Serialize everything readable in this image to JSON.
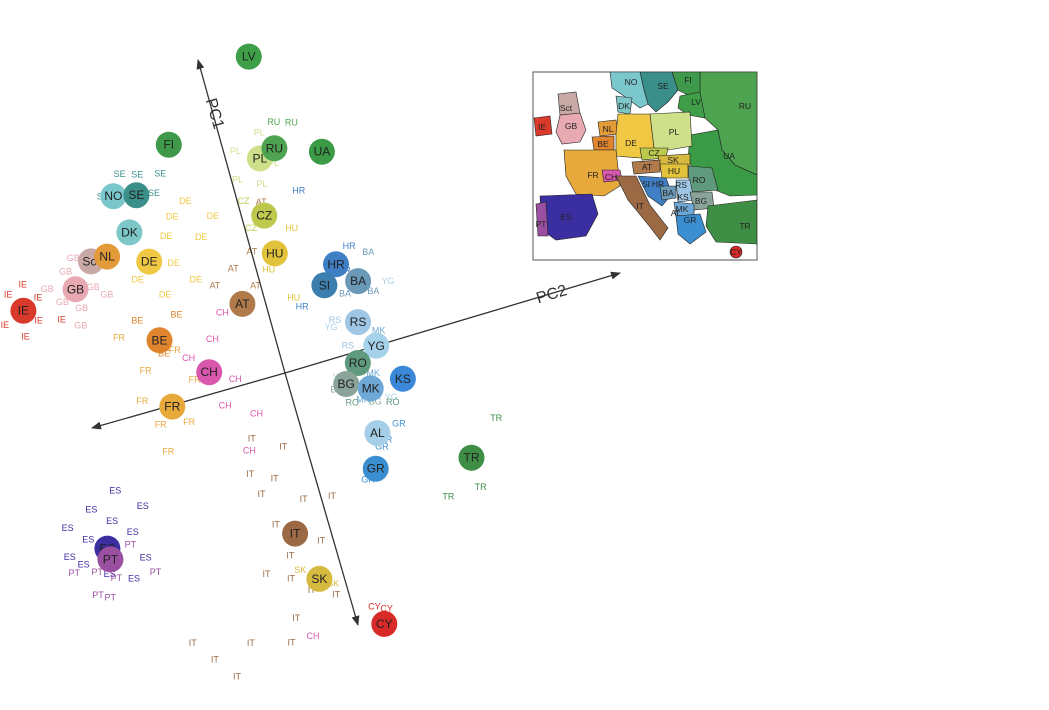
{
  "chart_data": {
    "type": "scatter",
    "title": "",
    "axes": [
      {
        "name": "PC1",
        "direction": "up"
      },
      {
        "name": "PC2",
        "direction": "right"
      }
    ],
    "colors": {
      "IE": "#d93a2b",
      "GB": "#e8a9b3",
      "Sct": "#c9a9a6",
      "NL": "#e39a38",
      "DK": "#7ec7c9",
      "NO": "#7bc8cc",
      "SE": "#3a8f8a",
      "FI": "#3e9a4a",
      "DE": "#f0c843",
      "BE": "#e0842e",
      "FR": "#e8a93b",
      "CH": "#d957ad",
      "AT": "#b07a4a",
      "CZ": "#bcc94c",
      "HU": "#e2c23a",
      "PL": "#cfe08a",
      "RU": "#4ea350",
      "LV": "#3f9e48",
      "UA": "#3a9a45",
      "HR": "#3f7fc6",
      "SI": "#3c7fae",
      "BA": "#6a9ab8",
      "RS": "#9fc6e4",
      "YG": "#a6d1ea",
      "RO": "#5f9a7e",
      "BG": "#8aa49a",
      "MK": "#6ea8d6",
      "KS": "#3b88d8",
      "AL": "#a5cfe8",
      "GR": "#3b8fd0",
      "TR": "#3e8e46",
      "IT": "#9b6a44",
      "SK": "#d6ba40",
      "CY": "#d82a26",
      "ES": "#3b2ea0",
      "PT": "#9a4fa0"
    },
    "centroids": [
      {
        "label": "IE",
        "pc1": 2.4,
        "pc2": -4.2
      },
      {
        "label": "GB",
        "pc1": 2.5,
        "pc2": -3.2
      },
      {
        "label": "Sct",
        "pc1": 2.9,
        "pc2": -2.8
      },
      {
        "label": "NL",
        "pc1": 2.9,
        "pc2": -2.5
      },
      {
        "label": "DK",
        "pc1": 3.2,
        "pc2": -2.0
      },
      {
        "label": "NO",
        "pc1": 3.9,
        "pc2": -2.1
      },
      {
        "label": "SE",
        "pc1": 3.8,
        "pc2": -1.7
      },
      {
        "label": "FI",
        "pc1": 4.5,
        "pc2": -0.9
      },
      {
        "label": "DE",
        "pc1": 2.6,
        "pc2": -1.8
      },
      {
        "label": "BE",
        "pc1": 1.2,
        "pc2": -2.0
      },
      {
        "label": "FR",
        "pc1": 0.0,
        "pc2": -2.1
      },
      {
        "label": "CH",
        "pc1": 0.4,
        "pc2": -1.3
      },
      {
        "label": "AT",
        "pc1": 1.4,
        "pc2": -0.4
      },
      {
        "label": "CZ",
        "pc1": 2.8,
        "pc2": 0.4
      },
      {
        "label": "HU",
        "pc1": 2.1,
        "pc2": 0.4
      },
      {
        "label": "PL",
        "pc1": 3.8,
        "pc2": 0.6
      },
      {
        "label": "RU",
        "pc1": 3.9,
        "pc2": 0.9
      },
      {
        "label": "LV",
        "pc1": 5.6,
        "pc2": 0.9
      },
      {
        "label": "UA",
        "pc1": 3.6,
        "pc2": 1.7
      },
      {
        "label": "HR",
        "pc1": 1.6,
        "pc2": 1.4
      },
      {
        "label": "SI",
        "pc1": 1.3,
        "pc2": 1.1
      },
      {
        "label": "BA",
        "pc1": 1.2,
        "pc2": 1.7
      },
      {
        "label": "RS",
        "pc1": 0.5,
        "pc2": 1.5
      },
      {
        "label": "YG",
        "pc1": 0.0,
        "pc2": 1.7
      },
      {
        "label": "RO",
        "pc1": -0.2,
        "pc2": 1.3
      },
      {
        "label": "BG",
        "pc1": -0.5,
        "pc2": 1.0
      },
      {
        "label": "MK",
        "pc1": -0.7,
        "pc2": 1.4
      },
      {
        "label": "KS",
        "pc1": -0.7,
        "pc2": 2.0
      },
      {
        "label": "AL",
        "pc1": -1.5,
        "pc2": 1.3
      },
      {
        "label": "GR",
        "pc1": -2.1,
        "pc2": 1.1
      },
      {
        "label": "TR",
        "pc1": -2.4,
        "pc2": 2.8
      },
      {
        "label": "IT",
        "pc1": -2.8,
        "pc2": -0.6
      },
      {
        "label": "SK",
        "pc1": -3.7,
        "pc2": -0.4
      },
      {
        "label": "CY",
        "pc1": -4.8,
        "pc2": 0.5
      },
      {
        "label": "ES",
        "pc1": -2.1,
        "pc2": -3.9
      },
      {
        "label": "PT",
        "pc1": -2.3,
        "pc2": -3.9
      }
    ],
    "individuals": [
      {
        "label": "IE",
        "pc1": 2.4,
        "pc2": -4.9
      },
      {
        "label": "IE",
        "pc1": 2.2,
        "pc2": -4.6
      },
      {
        "label": "IE",
        "pc1": 2.7,
        "pc2": -4.4
      },
      {
        "label": "IE",
        "pc1": 1.9,
        "pc2": -4.3
      },
      {
        "label": "IE",
        "pc1": 2.5,
        "pc2": -3.9
      },
      {
        "label": "IE",
        "pc1": 2.1,
        "pc2": -4.0
      },
      {
        "label": "IE",
        "pc1": 2.8,
        "pc2": -4.1
      },
      {
        "label": "IE",
        "pc1": 2.0,
        "pc2": -3.6
      },
      {
        "label": "GB",
        "pc1": 2.3,
        "pc2": -3.5
      },
      {
        "label": "GB",
        "pc1": 2.6,
        "pc2": -3.7
      },
      {
        "label": "GB",
        "pc1": 2.1,
        "pc2": -3.2
      },
      {
        "label": "GB",
        "pc1": 2.8,
        "pc2": -3.3
      },
      {
        "label": "GB",
        "pc1": 1.8,
        "pc2": -3.3
      },
      {
        "label": "GB",
        "pc1": 2.4,
        "pc2": -2.9
      },
      {
        "label": "GB",
        "pc1": 3.0,
        "pc2": -3.1
      },
      {
        "label": "GB",
        "pc1": 2.2,
        "pc2": -2.7
      },
      {
        "label": "SE",
        "pc1": 4.1,
        "pc2": -1.6
      },
      {
        "label": "SE",
        "pc1": 4.2,
        "pc2": -1.9
      },
      {
        "label": "SE",
        "pc1": 3.9,
        "pc2": -2.3
      },
      {
        "label": "SE",
        "pc1": 4.0,
        "pc2": -1.2
      },
      {
        "label": "SE",
        "pc1": 3.7,
        "pc2": -1.4
      },
      {
        "label": "DE",
        "pc1": 3.2,
        "pc2": -1.2
      },
      {
        "label": "DE",
        "pc1": 2.9,
        "pc2": -1.4
      },
      {
        "label": "DE",
        "pc1": 2.4,
        "pc2": -1.4
      },
      {
        "label": "DE",
        "pc1": 2.3,
        "pc2": -2.1
      },
      {
        "label": "DE",
        "pc1": 3.4,
        "pc2": -0.9
      },
      {
        "label": "DE",
        "pc1": 2.0,
        "pc2": -1.1
      },
      {
        "label": "DE",
        "pc1": 2.7,
        "pc2": -0.8
      },
      {
        "label": "DE",
        "pc1": 1.9,
        "pc2": -1.7
      },
      {
        "label": "DE",
        "pc1": 3.0,
        "pc2": -0.5
      },
      {
        "label": "PL",
        "pc1": 3.5,
        "pc2": 0.1
      },
      {
        "label": "PL",
        "pc1": 4.0,
        "pc2": 0.2
      },
      {
        "label": "PL",
        "pc1": 3.6,
        "pc2": 0.8
      },
      {
        "label": "PL",
        "pc1": 4.2,
        "pc2": 0.7
      },
      {
        "label": "PL",
        "pc1": 3.3,
        "pc2": 0.5
      },
      {
        "label": "RU",
        "pc1": 4.3,
        "pc2": 1.0
      },
      {
        "label": "RU",
        "pc1": 4.2,
        "pc2": 1.3
      },
      {
        "label": "CZ",
        "pc1": 3.1,
        "pc2": 0.1
      },
      {
        "label": "CZ",
        "pc1": 2.6,
        "pc2": 0.1
      },
      {
        "label": "AT",
        "pc1": 2.0,
        "pc2": -0.4
      },
      {
        "label": "AT",
        "pc1": 1.8,
        "pc2": -0.8
      },
      {
        "label": "AT",
        "pc1": 1.6,
        "pc2": -0.1
      },
      {
        "label": "AT",
        "pc1": 3.0,
        "pc2": 0.4
      },
      {
        "label": "AT",
        "pc1": 2.2,
        "pc2": 0.0
      },
      {
        "label": "HU",
        "pc1": 1.8,
        "pc2": 0.2
      },
      {
        "label": "HU",
        "pc1": 2.4,
        "pc2": 0.8
      },
      {
        "label": "HU",
        "pc1": 1.2,
        "pc2": 0.5
      },
      {
        "label": "HR",
        "pc1": 3.0,
        "pc2": 1.1
      },
      {
        "label": "HR",
        "pc1": 1.0,
        "pc2": 0.6
      },
      {
        "label": "HR",
        "pc1": 1.8,
        "pc2": 1.7
      },
      {
        "label": "HR",
        "pc1": 1.4,
        "pc2": 1.5
      },
      {
        "label": "HR",
        "pc1": -1.7,
        "pc2": 1.4
      },
      {
        "label": "BA",
        "pc1": 1.6,
        "pc2": 2.0
      },
      {
        "label": "BA",
        "pc1": 1.0,
        "pc2": 1.4
      },
      {
        "label": "BA",
        "pc1": 0.9,
        "pc2": 1.9
      },
      {
        "label": "YG",
        "pc1": 1.0,
        "pc2": 2.2
      },
      {
        "label": "YG",
        "pc1": -0.4,
        "pc2": 0.9
      },
      {
        "label": "YG",
        "pc1": 0.5,
        "pc2": 1.0
      },
      {
        "label": "YG",
        "pc1": -1.0,
        "pc2": 1.7
      },
      {
        "label": "RS",
        "pc1": 0.6,
        "pc2": 1.1
      },
      {
        "label": "RS",
        "pc1": 0.1,
        "pc2": 1.2
      },
      {
        "label": "MK",
        "pc1": -0.5,
        "pc2": 1.5
      },
      {
        "label": "MK",
        "pc1": -0.9,
        "pc2": 1.2
      },
      {
        "label": "MK",
        "pc1": 0.2,
        "pc2": 1.8
      },
      {
        "label": "RO",
        "pc1": -0.9,
        "pc2": 1.0
      },
      {
        "label": "RO",
        "pc1": -1.1,
        "pc2": 1.7
      },
      {
        "label": "BG",
        "pc1": -0.6,
        "pc2": 0.8
      },
      {
        "label": "BG",
        "pc1": -1.0,
        "pc2": 1.4
      },
      {
        "label": "GR",
        "pc1": -1.8,
        "pc2": 1.3
      },
      {
        "label": "GR",
        "pc1": -1.5,
        "pc2": 1.7
      },
      {
        "label": "GR",
        "pc1": -2.3,
        "pc2": 0.9
      },
      {
        "label": "TR",
        "pc1": -1.9,
        "pc2": 3.4
      },
      {
        "label": "TR",
        "pc1": -3.0,
        "pc2": 2.2
      },
      {
        "label": "TR",
        "pc1": -3.0,
        "pc2": 2.8
      },
      {
        "label": "FR",
        "pc1": 0.7,
        "pc2": -2.4
      },
      {
        "label": "FR",
        "pc1": 0.2,
        "pc2": -2.6
      },
      {
        "label": "FR",
        "pc1": -0.3,
        "pc2": -2.4
      },
      {
        "label": "FR",
        "pc1": 0.9,
        "pc2": -1.8
      },
      {
        "label": "FR",
        "pc1": -0.4,
        "pc2": -1.9
      },
      {
        "label": "FR",
        "pc1": 1.4,
        "pc2": -2.7
      },
      {
        "label": "FR",
        "pc1": -0.8,
        "pc2": -2.4
      },
      {
        "label": "FR",
        "pc1": 0.3,
        "pc2": -1.6
      },
      {
        "label": "CH",
        "pc1": 0.9,
        "pc2": -1.1
      },
      {
        "label": "CH",
        "pc1": 0.1,
        "pc2": -0.9
      },
      {
        "label": "CH",
        "pc1": -0.3,
        "pc2": -1.2
      },
      {
        "label": "CH",
        "pc1": 0.7,
        "pc2": -1.6
      },
      {
        "label": "CH",
        "pc1": -0.6,
        "pc2": -0.7
      },
      {
        "label": "CH",
        "pc1": 1.3,
        "pc2": -0.8
      },
      {
        "label": "CH",
        "pc1": -1.2,
        "pc2": -1.0
      },
      {
        "label": "CH",
        "pc1": -4.7,
        "pc2": -0.8
      },
      {
        "label": "BE",
        "pc1": 1.6,
        "pc2": -2.3
      },
      {
        "label": "BE",
        "pc1": 0.9,
        "pc2": -2.0
      },
      {
        "label": "BE",
        "pc1": 1.5,
        "pc2": -1.6
      },
      {
        "label": "IT",
        "pc1": -1.3,
        "pc2": -0.4
      },
      {
        "label": "IT",
        "pc1": -1.8,
        "pc2": -0.7
      },
      {
        "label": "IT",
        "pc1": -2.3,
        "pc2": -0.3
      },
      {
        "label": "IT",
        "pc1": -2.0,
        "pc2": -1.0
      },
      {
        "label": "IT",
        "pc1": -2.6,
        "pc2": -0.9
      },
      {
        "label": "IT",
        "pc1": -3.1,
        "pc2": -0.2
      },
      {
        "label": "IT",
        "pc1": -3.2,
        "pc2": -0.8
      },
      {
        "label": "IT",
        "pc1": -3.6,
        "pc2": -0.9
      },
      {
        "label": "IT",
        "pc1": -2.4,
        "pc2": 0.2
      },
      {
        "label": "IT",
        "pc1": -1.6,
        "pc2": -1.1
      },
      {
        "label": "IT",
        "pc1": -3.9,
        "pc2": -0.6
      },
      {
        "label": "IT",
        "pc1": -4.1,
        "pc2": -0.2
      },
      {
        "label": "IT",
        "pc1": -1.0,
        "pc2": -0.9
      },
      {
        "label": "IT",
        "pc1": -4.3,
        "pc2": -1.0
      },
      {
        "label": "IT",
        "pc1": -3.4,
        "pc2": -1.3
      },
      {
        "label": "IT",
        "pc1": -4.6,
        "pc2": -2.6
      },
      {
        "label": "IT",
        "pc1": -5.0,
        "pc2": -2.3
      },
      {
        "label": "IT",
        "pc1": -4.5,
        "pc2": -1.9
      },
      {
        "label": "IT",
        "pc1": -4.2,
        "pc2": -2.9
      },
      {
        "label": "IT",
        "pc1": -4.7,
        "pc2": -1.2
      },
      {
        "label": "SK",
        "pc1": -3.9,
        "pc2": -0.2
      },
      {
        "label": "SK",
        "pc1": -3.5,
        "pc2": -0.7
      },
      {
        "label": "CY",
        "pc1": -4.5,
        "pc2": 0.4
      },
      {
        "label": "CY",
        "pc1": -4.6,
        "pc2": 0.6
      },
      {
        "label": "ES",
        "pc1": -1.7,
        "pc2": -3.7
      },
      {
        "label": "ES",
        "pc1": -1.9,
        "pc2": -4.2
      },
      {
        "label": "ES",
        "pc1": -2.3,
        "pc2": -4.4
      },
      {
        "label": "ES",
        "pc1": -2.0,
        "pc2": -3.4
      },
      {
        "label": "ES",
        "pc1": -2.6,
        "pc2": -4.0
      },
      {
        "label": "ES",
        "pc1": -1.6,
        "pc2": -4.5
      },
      {
        "label": "ES",
        "pc1": -2.5,
        "pc2": -3.3
      },
      {
        "label": "ES",
        "pc1": -1.4,
        "pc2": -4.0
      },
      {
        "label": "ES",
        "pc1": -2.1,
        "pc2": -4.6
      },
      {
        "label": "ES",
        "pc1": -1.6,
        "pc2": -3.1
      },
      {
        "label": "ES",
        "pc1": -2.8,
        "pc2": -3.6
      },
      {
        "label": "ES",
        "pc1": -1.2,
        "pc2": -3.5
      },
      {
        "label": "PT",
        "pc1": -2.5,
        "pc2": -4.2
      },
      {
        "label": "PT",
        "pc1": -2.7,
        "pc2": -3.9
      },
      {
        "label": "PT",
        "pc1": -2.4,
        "pc2": -4.6
      },
      {
        "label": "PT",
        "pc1": -2.9,
        "pc2": -4.3
      },
      {
        "label": "PT",
        "pc1": -2.2,
        "pc2": -3.5
      },
      {
        "label": "PT",
        "pc1": -2.8,
        "pc2": -3.2
      },
      {
        "label": "PT",
        "pc1": -3.0,
        "pc2": -4.1
      }
    ]
  },
  "inset_map": {
    "labels": [
      "NO",
      "SE",
      "FI",
      "RU",
      "LV",
      "DK",
      "Sct",
      "GB",
      "IE",
      "NL",
      "BE",
      "DE",
      "PL",
      "UA",
      "CZ",
      "SK",
      "FR",
      "CH",
      "AT",
      "HU",
      "RO",
      "SI",
      "HR",
      "BA",
      "RS",
      "KS",
      "MK",
      "BG",
      "AL",
      "GR",
      "TR",
      "IT",
      "ES",
      "PT",
      "CY"
    ]
  }
}
